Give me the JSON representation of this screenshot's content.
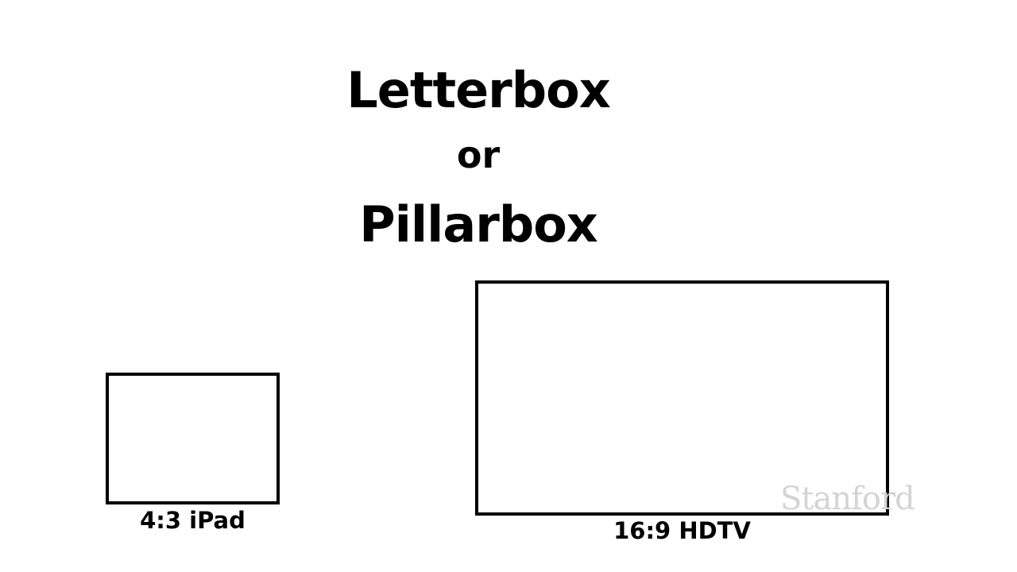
{
  "slide": {
    "title_line_1": "Letterbox",
    "title_line_2": "or",
    "title_line_3": "Pillarbox"
  },
  "screens": {
    "ipad": {
      "caption": "4:3 iPad",
      "aspect_ratio": "4:3"
    },
    "hdtv": {
      "caption": "16:9 HDTV",
      "aspect_ratio": "16:9"
    }
  },
  "watermark": {
    "text": "Stanford",
    "color": "#d4d4d4"
  },
  "colors": {
    "background": "#ffffff",
    "text": "#000000",
    "outline": "#000000"
  }
}
